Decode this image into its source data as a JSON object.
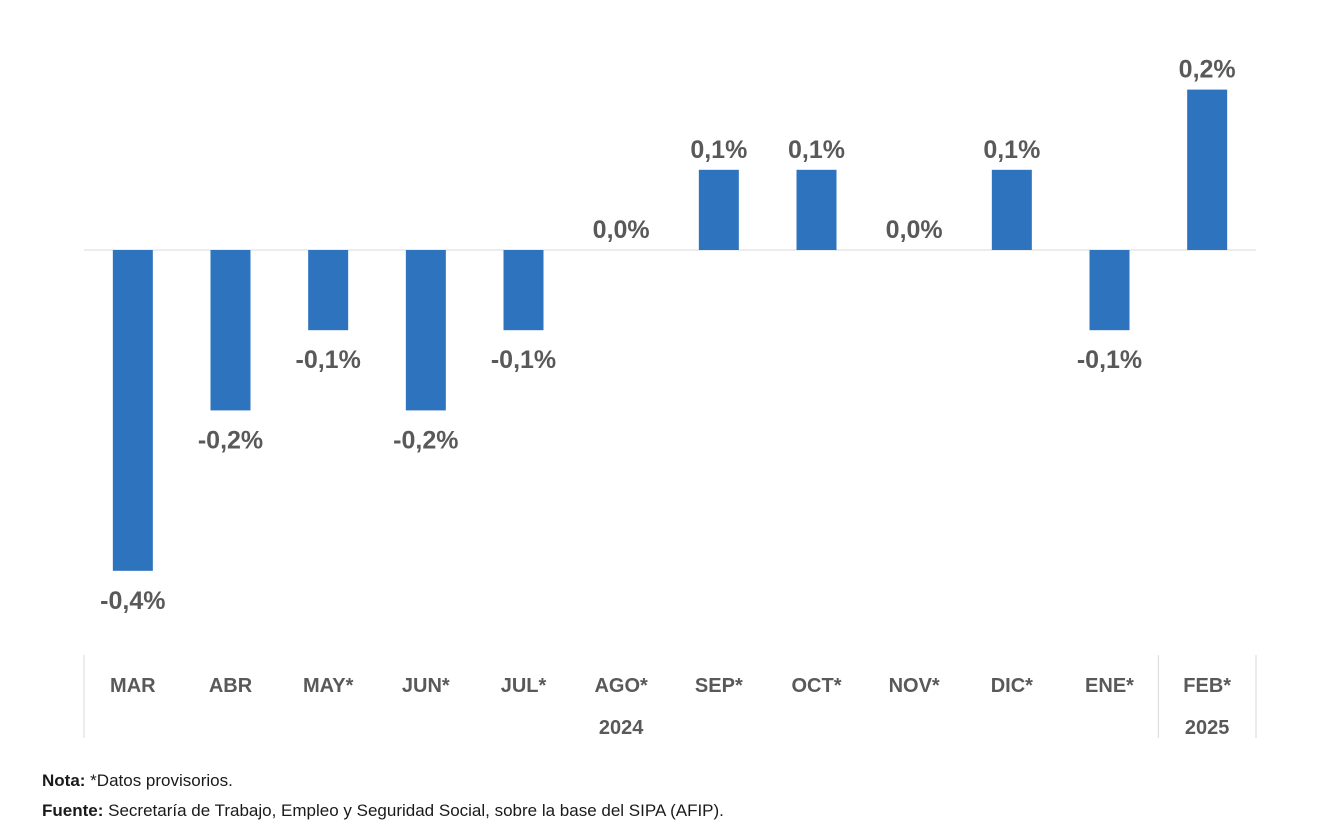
{
  "chart_data": {
    "type": "bar",
    "categories": [
      "MAR",
      "ABR",
      "MAY*",
      "JUN*",
      "JUL*",
      "AGO*",
      "SEP*",
      "OCT*",
      "NOV*",
      "DIC*",
      "ENE*",
      "FEB*"
    ],
    "values": [
      -0.4,
      -0.2,
      -0.1,
      -0.2,
      -0.1,
      0.0,
      0.1,
      0.1,
      0.0,
      0.1,
      -0.1,
      0.2
    ],
    "data_labels": [
      "-0,4%",
      "-0,2%",
      "-0,1%",
      "-0,2%",
      "-0,1%",
      "0,0%",
      "0,1%",
      "0,1%",
      "0,0%",
      "0,1%",
      "-0,1%",
      "0,2%"
    ],
    "year_groups": [
      {
        "label": "2024",
        "start": 0,
        "end": 10
      },
      {
        "label": "2025",
        "start": 11,
        "end": 11
      }
    ],
    "ylim": [
      -0.4,
      0.2
    ],
    "bar_color": "#2e73bd",
    "grid": false,
    "title": "",
    "xlabel": "",
    "ylabel": ""
  },
  "footer": {
    "note_label": "Nota:",
    "note_text": " *Datos provisorios.",
    "source_label": "Fuente:",
    "source_text": " Secretaría de Trabajo, Empleo y Seguridad Social, sobre la base del SIPA (AFIP)."
  }
}
